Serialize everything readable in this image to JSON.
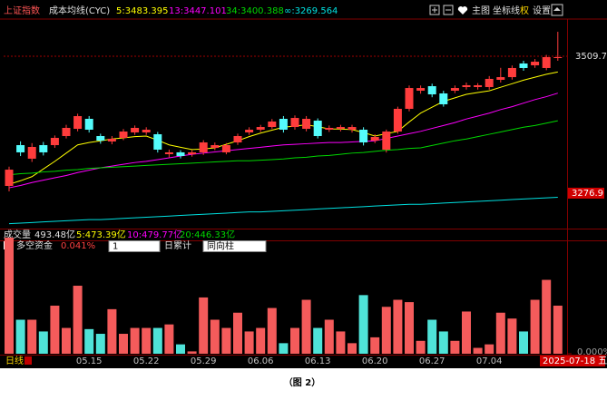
{
  "chart_data": [
    {
      "type": "candlestick",
      "title": "上证指数",
      "subtitle": "成本均线(CYC)",
      "open": [
        3289.2,
        3358.6,
        3335.5,
        3358.6,
        3358.6,
        3374.0,
        3386.3,
        3403.3,
        3374.0,
        3364.8,
        3370.9,
        3380.2,
        3380.2,
        3377.1,
        3343.2,
        3346.3,
        3343.2,
        3346.3,
        3353.9,
        3346.3,
        3363.2,
        3380.2,
        3384.8,
        3389.4,
        3403.3,
        3389.4,
        3386.3,
        3400.2,
        3384.8,
        3386.3,
        3384.8,
        3384.8,
        3366.3,
        3350.9,
        3381.7,
        3420.3,
        3451.1,
        3458.8,
        3446.5,
        3451.1,
        3457.3,
        3457.3,
        3457.3,
        3469.6,
        3474.2,
        3497.4,
        3494.3,
        3489.7,
        3506.6
      ],
      "high": [
        3322,
        3365,
        3362,
        3364,
        3375,
        3393,
        3412,
        3408,
        3378,
        3374,
        3386,
        3392,
        3389,
        3381,
        3351,
        3350,
        3350,
        3367,
        3363,
        3362,
        3378,
        3389,
        3393,
        3403,
        3408,
        3409,
        3408,
        3404,
        3392,
        3393,
        3393,
        3389,
        3377,
        3385,
        3424,
        3460,
        3460,
        3463,
        3451,
        3460,
        3465,
        3464,
        3476,
        3490,
        3494,
        3502,
        3505,
        3512,
        3551.3
      ],
      "low": [
        3280,
        3340,
        3330,
        3341,
        3354,
        3370,
        3382,
        3380,
        3361,
        3360,
        3367,
        3376,
        3376,
        3346,
        3338,
        3336,
        3339,
        3342,
        3350,
        3343,
        3359,
        3376,
        3381,
        3386,
        3380,
        3385,
        3382,
        3370,
        3381,
        3382,
        3380,
        3358,
        3362,
        3346,
        3378,
        3416,
        3446,
        3440,
        3424,
        3447,
        3453,
        3453,
        3453,
        3465,
        3470,
        3485,
        3490,
        3486,
        3502
      ],
      "close": [
        3316.9,
        3346.3,
        3355.5,
        3346.3,
        3370.9,
        3387.9,
        3407.9,
        3384.8,
        3366.3,
        3369.4,
        3381.7,
        3387.9,
        3384.8,
        3350.9,
        3346.3,
        3340.1,
        3346.3,
        3363.2,
        3358.6,
        3358.6,
        3374.0,
        3384.8,
        3389.4,
        3398.7,
        3384.8,
        3404.8,
        3403.3,
        3374.0,
        3387.9,
        3389.4,
        3389.4,
        3363.2,
        3372.5,
        3381.7,
        3420.3,
        3455.7,
        3455.7,
        3444.9,
        3428.0,
        3455.7,
        3460.4,
        3460.4,
        3471.2,
        3474.2,
        3489.7,
        3489.7,
        3500.4,
        3508.2,
        3508.2
      ],
      "up_color": "#ff3c3c",
      "down_color": "#54fcfc",
      "series": [
        {
          "name": "5:3483.395",
          "color": "#ffff00",
          "values": [
            3292,
            3298,
            3305,
            3318,
            3331,
            3345,
            3359,
            3363,
            3366,
            3369,
            3371,
            3373,
            3374,
            3367,
            3359,
            3355,
            3351,
            3352,
            3354,
            3360,
            3366,
            3373,
            3379,
            3384,
            3389,
            3391,
            3393,
            3390,
            3386,
            3386,
            3385,
            3380,
            3374,
            3378,
            3382,
            3398,
            3413,
            3423,
            3433,
            3439,
            3445,
            3448,
            3451,
            3457,
            3463,
            3469,
            3474,
            3479,
            3483
          ]
        },
        {
          "name": "13:3447.101",
          "color": "#ff00ff",
          "values": [
            3286,
            3290,
            3295,
            3299,
            3303,
            3307,
            3312,
            3316,
            3320,
            3323,
            3326,
            3329,
            3331,
            3334,
            3337,
            3340,
            3343,
            3345,
            3347,
            3349,
            3351,
            3353,
            3355,
            3357,
            3359,
            3360,
            3361,
            3362,
            3363,
            3363,
            3364,
            3365,
            3366,
            3370,
            3374,
            3378,
            3382,
            3387,
            3392,
            3397,
            3403,
            3408,
            3413,
            3419,
            3424,
            3430,
            3436,
            3441,
            3447
          ]
        },
        {
          "name": "34:3400.388",
          "color": "#00d800",
          "values": [
            3308,
            3310,
            3311,
            3313,
            3314,
            3316,
            3317,
            3319,
            3320,
            3321,
            3322,
            3323,
            3324,
            3325,
            3326,
            3327,
            3328,
            3329,
            3330,
            3331,
            3332,
            3332,
            3333,
            3334,
            3335,
            3337,
            3338,
            3340,
            3341,
            3343,
            3345,
            3346,
            3348,
            3350,
            3351,
            3353,
            3354,
            3358,
            3362,
            3366,
            3369,
            3373,
            3377,
            3381,
            3385,
            3389,
            3392,
            3396,
            3400
          ]
        },
        {
          "name": "∞:3269.564",
          "color": "#00e0e0",
          "values": [
            3225,
            3226,
            3227,
            3228,
            3229,
            3230,
            3231,
            3232,
            3232,
            3233,
            3234,
            3235,
            3236,
            3237,
            3238,
            3239,
            3240,
            3241,
            3242,
            3243,
            3244,
            3245,
            3245,
            3246,
            3247,
            3248,
            3249,
            3250,
            3251,
            3252,
            3253,
            3254,
            3255,
            3256,
            3257,
            3258,
            3258,
            3259,
            3260,
            3261,
            3262,
            3263,
            3264,
            3265,
            3266,
            3267,
            3268,
            3269,
            3270
          ]
        }
      ],
      "ylim": [
        3219.8,
        3571.4
      ],
      "yticks": [
        3509.7
      ],
      "price_marker": 3276.9
    },
    {
      "type": "bar",
      "title": "多空资金",
      "reading": "0.041%",
      "categories": [
        null,
        null,
        null,
        null,
        null,
        null,
        null,
        "05.15",
        null,
        null,
        null,
        null,
        "05.22",
        null,
        null,
        null,
        null,
        "05.29",
        null,
        null,
        null,
        null,
        "06.06",
        null,
        null,
        null,
        null,
        "06.13",
        null,
        null,
        null,
        null,
        "06.20",
        null,
        null,
        null,
        null,
        "06.27",
        null,
        null,
        null,
        null,
        "07.04",
        null,
        null,
        null,
        null,
        null,
        "2025-07-18 五"
      ],
      "values": [
        0.099,
        0.029,
        0.029,
        0.019,
        0.041,
        0.022,
        0.058,
        0.021,
        0.017,
        0.038,
        0.017,
        0.022,
        0.022,
        0.022,
        0.025,
        0.008,
        0.002,
        0.048,
        0.029,
        0.022,
        0.035,
        0.019,
        0.022,
        0.039,
        0.009,
        0.022,
        0.046,
        0.022,
        0.029,
        0.019,
        0.009,
        0.05,
        0.014,
        0.04,
        0.046,
        0.044,
        0.011,
        0.029,
        0.019,
        0.011,
        0.036,
        0.005,
        0.008,
        0.035,
        0.03,
        0.019,
        0.046,
        0.063,
        0.041
      ],
      "ylim": [
        0,
        0.099
      ],
      "yticks": [
        {
          "value": 0,
          "label": "0.000%"
        }
      ]
    }
  ],
  "toolbar": {
    "buttons": [
      "主图",
      "坐标线",
      "权",
      "设置"
    ]
  },
  "volume_header": {
    "title": "成交量",
    "value": "493.48亿",
    "ma": [
      "5:473.39亿",
      "10:479.77亿",
      "20:446.33亿"
    ]
  },
  "indicator_controls": {
    "period_select": "1",
    "mode": "日累计",
    "style_select": "同向柱"
  },
  "period": "日线",
  "caption": "（图 2）"
}
